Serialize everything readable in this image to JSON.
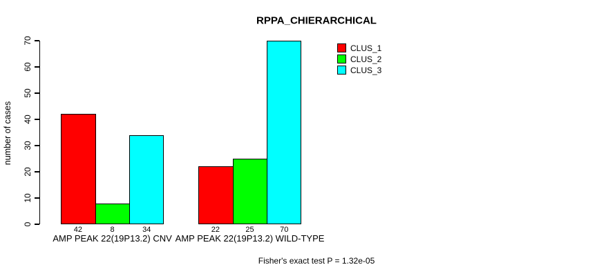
{
  "title": "RPPA_CHIERARCHICAL",
  "footer": {
    "note": "Fisher's exact test P = 1.32e-05"
  },
  "chart_data": {
    "type": "bar",
    "title": "RPPA_CHIERARCHICAL",
    "xlabel": "",
    "ylabel": "number of cases",
    "ylim": [
      0,
      70
    ],
    "yticks": [
      0,
      10,
      20,
      30,
      40,
      50,
      60,
      70
    ],
    "grid": false,
    "legend_position": "top-right",
    "bar_value_labels": true,
    "categories": [
      "AMP PEAK 22(19P13.2) CNV",
      "AMP PEAK 22(19P13.2) WILD-TYPE"
    ],
    "series": [
      {
        "name": "CLUS_1",
        "color": "#ff0000",
        "values": [
          42,
          22
        ]
      },
      {
        "name": "CLUS_2",
        "color": "#00ff00",
        "values": [
          8,
          25
        ]
      },
      {
        "name": "CLUS_3",
        "color": "#00ffff",
        "values": [
          34,
          70
        ]
      }
    ],
    "annotation": "Fisher's exact test P = 1.32e-05"
  }
}
